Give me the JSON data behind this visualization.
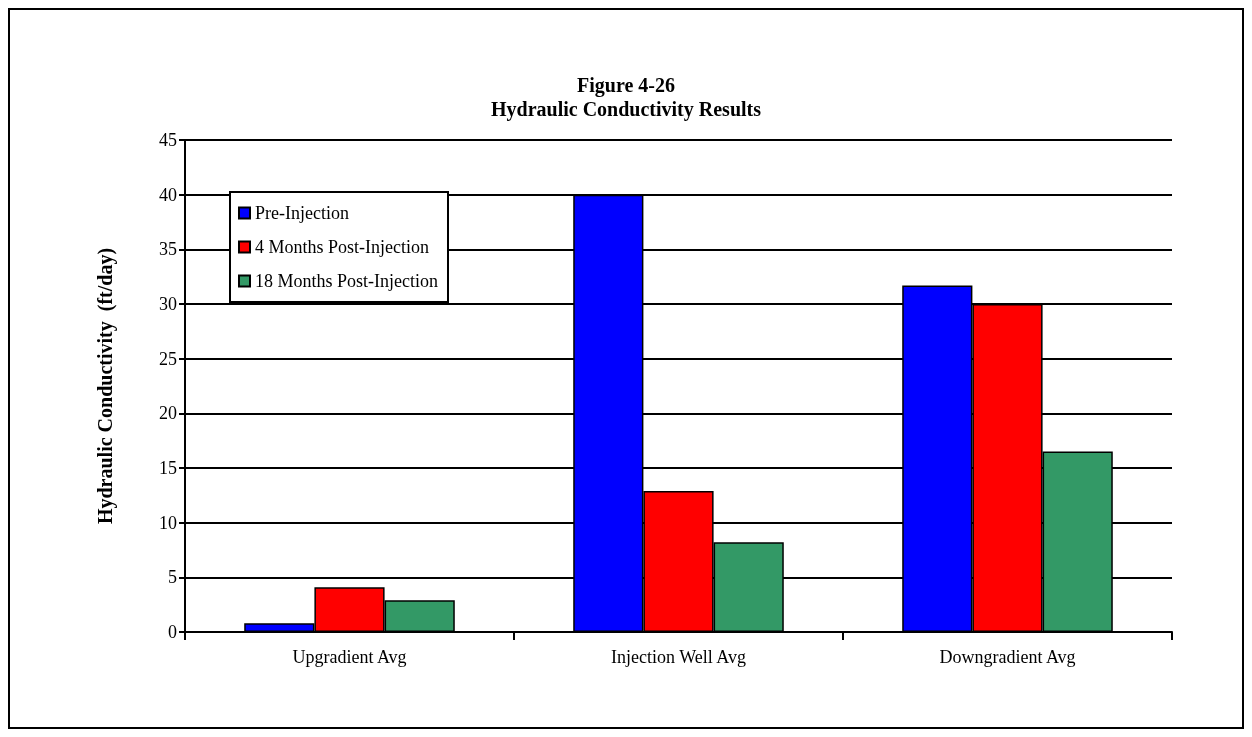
{
  "chart_data": {
    "type": "bar",
    "title": "Figure 4-26",
    "subtitle": "Hydraulic Conductivity Results",
    "ylabel": "Hydraulic Conductivity  (ft/day)",
    "categories": [
      "Upgradient Avg",
      "Injection Well Avg",
      "Downgradient Avg"
    ],
    "series": [
      {
        "name": "Pre-Injection",
        "color": "#0000ff",
        "values": [
          0.8,
          40,
          31.7
        ]
      },
      {
        "name": "4 Months Post-Injection",
        "color": "#ff0000",
        "values": [
          4.1,
          12.9,
          30
        ]
      },
      {
        "name": "18 Months Post-Injection",
        "color": "#339966",
        "values": [
          2.9,
          8.2,
          16.5
        ]
      }
    ],
    "ylim": [
      0,
      45
    ],
    "yticks": [
      0,
      5,
      10,
      15,
      20,
      25,
      30,
      35,
      40,
      45
    ],
    "grid": "y",
    "legend": "top left"
  }
}
